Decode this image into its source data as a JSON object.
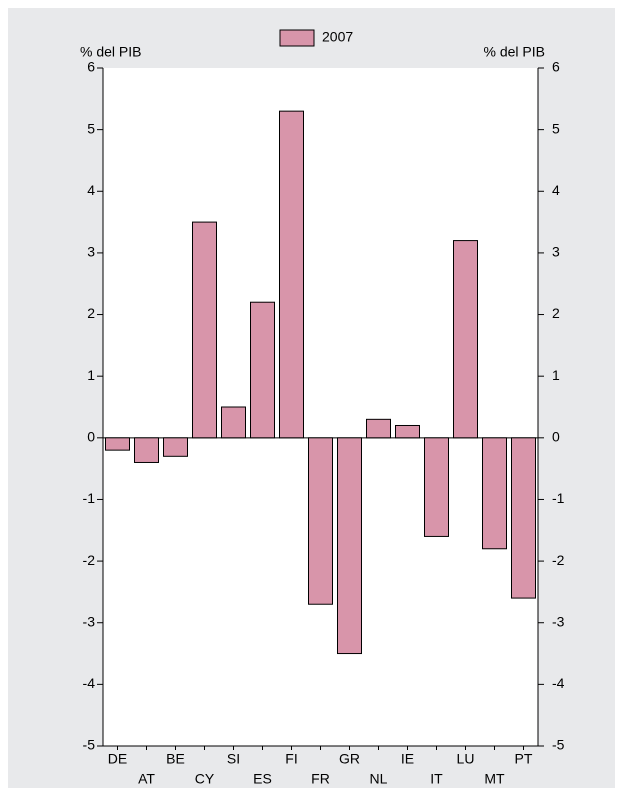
{
  "chart_data": {
    "type": "bar",
    "series": [
      {
        "name": "2007",
        "color": "#d895aa",
        "values": [
          -0.2,
          -0.4,
          -0.3,
          3.5,
          0.5,
          2.2,
          5.3,
          -2.7,
          -3.5,
          0.3,
          0.2,
          -1.6,
          3.2,
          -1.8,
          -2.6
        ]
      }
    ],
    "categories": [
      "DE",
      "AT",
      "BE",
      "CY",
      "SI",
      "ES",
      "FI",
      "FR",
      "GR",
      "NL",
      "IE",
      "IT",
      "LU",
      "MT",
      "PT"
    ],
    "ylabel": "% del PIB",
    "y2label": "% del PIB",
    "ylim": [
      -5,
      6
    ],
    "yticks": [
      -5,
      -4,
      -3,
      -2,
      -1,
      0,
      1,
      2,
      3,
      4,
      5,
      6
    ],
    "y2lim": [
      -5,
      6
    ],
    "y2ticks": [
      -5,
      -4,
      -3,
      -2,
      -1,
      0,
      1,
      2,
      3,
      4,
      5,
      6
    ],
    "legend": "top"
  }
}
